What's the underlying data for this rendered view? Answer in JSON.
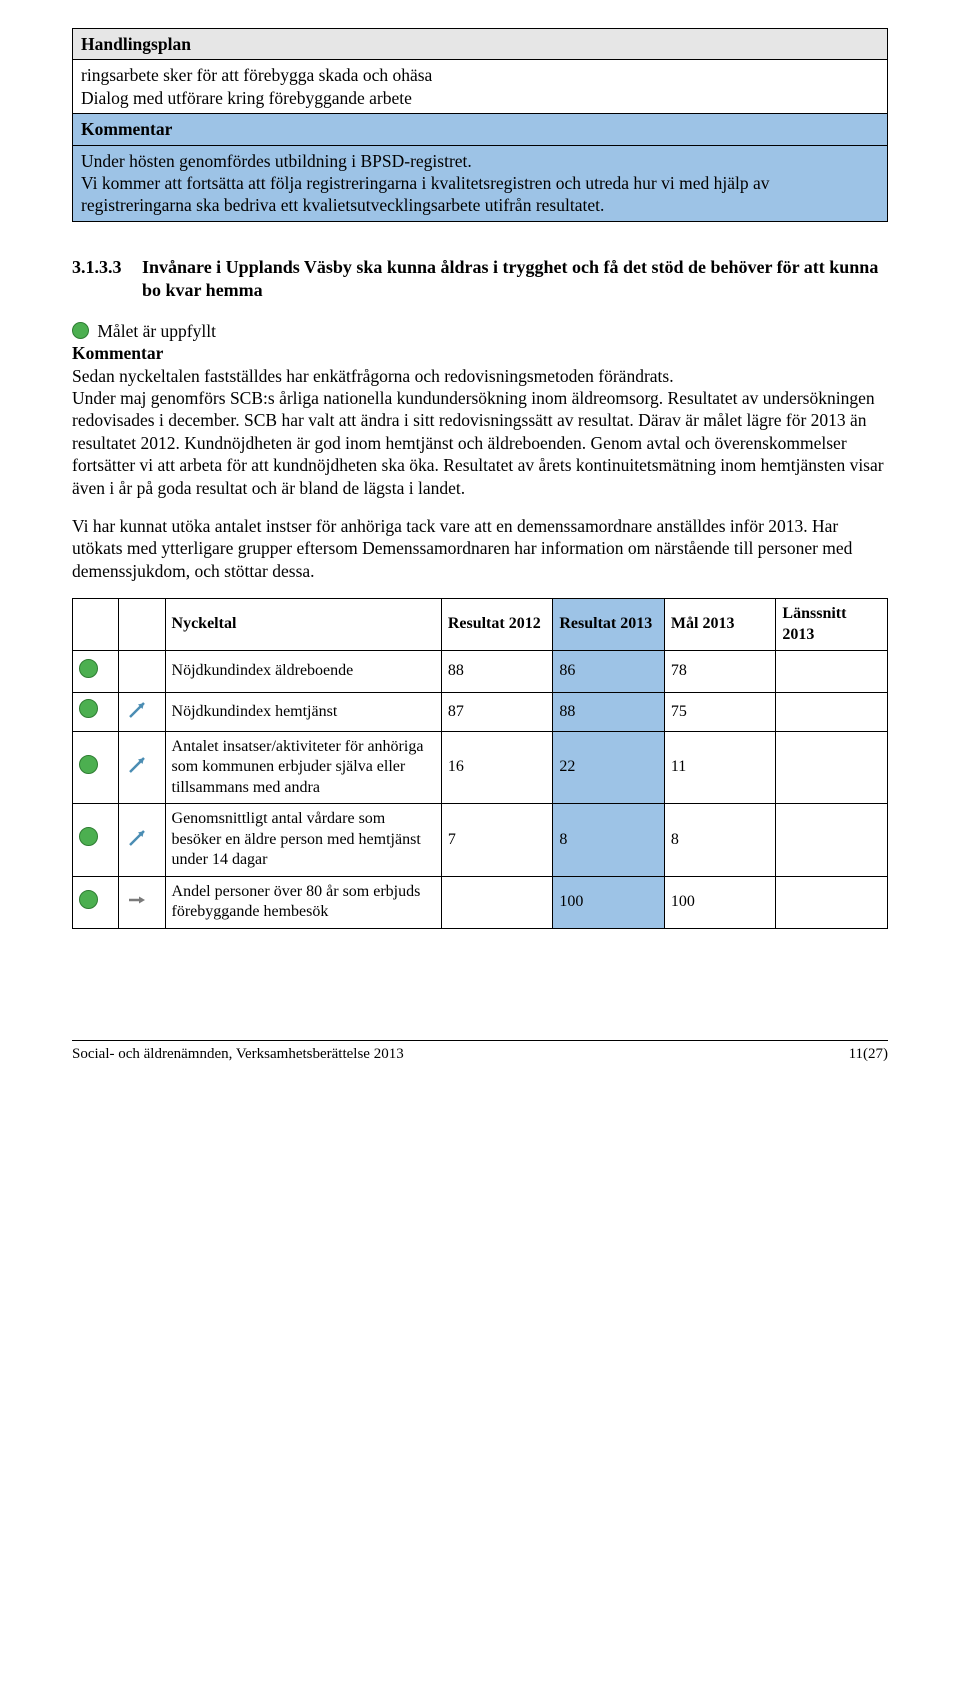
{
  "plan": {
    "header": "Handlingsplan",
    "body_line1": "ringsarbete sker för att förebygga skada och ohäsa",
    "body_line2": "Dialog med utförare kring förebyggande arbete",
    "comment_header": "Kommentar",
    "comment_body": "Under hösten genomfördes utbildning i BPSD-registret.\nVi kommer att fortsätta att följa registreringarna i kvalitetsregistren och utreda hur vi med hjälp av registreringarna ska bedriva ett kvalietsutvecklingsarbete utifrån resultatet."
  },
  "section": {
    "number": "3.1.3.3",
    "title": "Invånare i Upplands Väsby ska kunna åldras i trygghet och få det stöd de behöver för att kunna bo kvar hemma"
  },
  "colors": {
    "green_dot": "#4caf50",
    "green_dot_border": "#2e7d32",
    "hilite_bg": "#9dc3e6",
    "gray_bg": "#e6e6e6",
    "arrow_up": "#4b8db3",
    "arrow_flat": "#7a7a7a"
  },
  "goal": {
    "status_text": "Målet är uppfyllt",
    "kommentar_label": "Kommentar",
    "p1": "Sedan nyckeltalen fastställdes har enkätfrågorna och redovisningsmetoden förändrats.",
    "p2": "Under maj genomförs SCB:s årliga nationella kundundersökning inom äldreomsorg. Resultatet av undersökningen redovisades  i december. SCB har valt att ändra i sitt redovisningssätt av resultat.  Därav är målet lägre för 2013 än resultatet 2012. Kundnöjdheten är god inom hemtjänst och äldreboenden. Genom avtal och överenskommelser fortsätter vi att arbeta för att kundnöjdheten ska öka. Resultatet av årets kontinuitetsmätning inom hemtjänsten visar även i år på goda resultat och är bland de lägsta i landet.",
    "p3": "Vi har kunnat utöka antalet instser för anhöriga tack vare att en demenssamordnare anställdes inför 2013. Har utökats med ytterligare grupper eftersom Demenssamordnaren har information om närstående till personer med demenssjukdom, och stöttar dessa."
  },
  "table": {
    "headers": {
      "name": "Nyckeltal",
      "r2012": "Resultat 2012",
      "r2013": "Resultat 2013",
      "goal2013": "Mål 2013",
      "county2013": "Länssnitt 2013"
    },
    "rows": [
      {
        "status_color": "#4caf50",
        "trend": "none",
        "name": "Nöjdkundindex äldreboende",
        "r2012": "88",
        "r2013": "86",
        "goal": "78",
        "county": ""
      },
      {
        "status_color": "#4caf50",
        "trend": "up",
        "name": "Nöjdkundindex hemtjänst",
        "r2012": "87",
        "r2013": "88",
        "goal": "75",
        "county": ""
      },
      {
        "status_color": "#4caf50",
        "trend": "up",
        "name": "Antalet insatser/aktiviteter för anhöriga som kommunen erbjuder själva eller tillsammans med andra",
        "r2012": "16",
        "r2013": "22",
        "goal": "11",
        "county": ""
      },
      {
        "status_color": "#4caf50",
        "trend": "up",
        "name": "Genomsnittligt antal vårdare som besöker en äldre person med hemtjänst under 14 dagar",
        "r2012": "7",
        "r2013": "8",
        "goal": "8",
        "county": ""
      },
      {
        "status_color": "#4caf50",
        "trend": "flat",
        "name": "Andel personer över 80 år som erbjuds förebyggande hembesök",
        "r2012": "",
        "r2013": "100",
        "goal": "100",
        "county": ""
      }
    ]
  },
  "footer": {
    "left": "Social- och äldrenämnden, Verksamhetsberättelse 2013",
    "right": "11(27)"
  }
}
